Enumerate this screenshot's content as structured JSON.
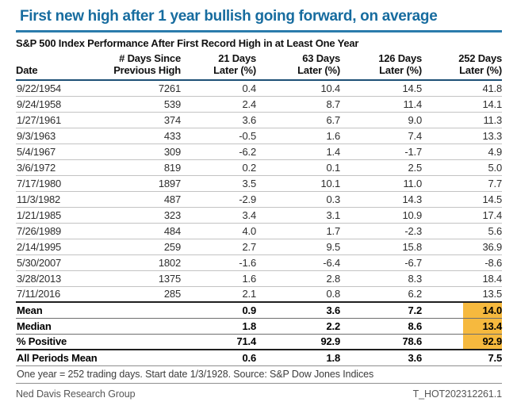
{
  "header": {
    "title": "First new high after 1 year bullish going forward, on average",
    "subtitle": "S&P 500 Index Performance After First Record High in at Least One Year"
  },
  "colors": {
    "title_blue": "#176c9f",
    "rule_blue": "#2b7cac",
    "header_border_navy": "#1d5075",
    "highlight_amber": "#f6b93e"
  },
  "chart_data": {
    "type": "table",
    "title": "S&P 500 Index Performance After First Record High in at Least One Year",
    "columns": [
      {
        "line1": "",
        "line2": "Date"
      },
      {
        "line1": "# Days Since",
        "line2": "Previous High"
      },
      {
        "line1": "21 Days",
        "line2": "Later (%)"
      },
      {
        "line1": "63 Days",
        "line2": "Later (%)"
      },
      {
        "line1": "126 Days",
        "line2": "Later (%)"
      },
      {
        "line1": "252 Days",
        "line2": "Later (%)"
      }
    ],
    "rows": [
      [
        "9/22/1954",
        "7261",
        "0.4",
        "10.4",
        "14.5",
        "41.8"
      ],
      [
        "9/24/1958",
        "539",
        "2.4",
        "8.7",
        "11.4",
        "14.1"
      ],
      [
        "1/27/1961",
        "374",
        "3.6",
        "6.7",
        "9.0",
        "11.3"
      ],
      [
        "9/3/1963",
        "433",
        "-0.5",
        "1.6",
        "7.4",
        "13.3"
      ],
      [
        "5/4/1967",
        "309",
        "-6.2",
        "1.4",
        "-1.7",
        "4.9"
      ],
      [
        "3/6/1972",
        "819",
        "0.2",
        "0.1",
        "2.5",
        "5.0"
      ],
      [
        "7/17/1980",
        "1897",
        "3.5",
        "10.1",
        "11.0",
        "7.7"
      ],
      [
        "11/3/1982",
        "487",
        "-2.9",
        "0.3",
        "14.3",
        "14.5"
      ],
      [
        "1/21/1985",
        "323",
        "3.4",
        "3.1",
        "10.9",
        "17.4"
      ],
      [
        "7/26/1989",
        "484",
        "4.0",
        "1.7",
        "-2.3",
        "5.6"
      ],
      [
        "2/14/1995",
        "259",
        "2.7",
        "9.5",
        "15.8",
        "36.9"
      ],
      [
        "5/30/2007",
        "1802",
        "-1.6",
        "-6.4",
        "-6.7",
        "-8.6"
      ],
      [
        "3/28/2013",
        "1375",
        "1.6",
        "2.8",
        "8.3",
        "18.4"
      ],
      [
        "7/11/2016",
        "285",
        "2.1",
        "0.8",
        "6.2",
        "13.5"
      ]
    ],
    "summary_rows": [
      {
        "label": "Mean",
        "values": [
          "0.9",
          "3.6",
          "7.2",
          "14.0"
        ],
        "highlight_last": true
      },
      {
        "label": "Median",
        "values": [
          "1.8",
          "2.2",
          "8.6",
          "13.4"
        ],
        "highlight_last": true
      },
      {
        "label": "% Positive",
        "values": [
          "71.4",
          "92.9",
          "78.6",
          "92.9"
        ],
        "highlight_last": true
      },
      {
        "label": "All Periods Mean",
        "values": [
          "0.6",
          "1.8",
          "3.6",
          "7.5"
        ],
        "highlight_last": false
      }
    ],
    "footnote": "One year = 252 trading days. Start date 1/3/1928. Source: S&P Dow Jones Indices"
  },
  "footer": {
    "left": "Ned Davis Research Group",
    "right": "T_HOT202312261.1"
  }
}
